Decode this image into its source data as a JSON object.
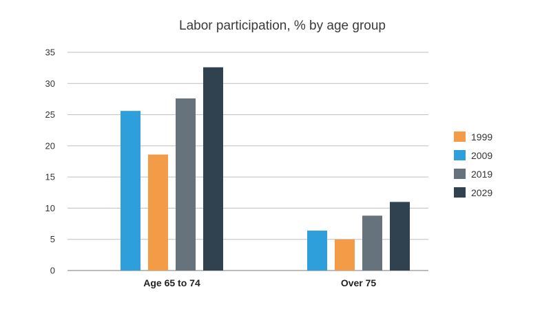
{
  "chart_data": {
    "type": "bar",
    "title": "Labor participation, % by age group",
    "categories": [
      "Age 65 to 74",
      "Over 75"
    ],
    "series": [
      {
        "name": "1999",
        "values": [
          18.6,
          5.0
        ],
        "color": "#f39b47"
      },
      {
        "name": "2009",
        "values": [
          25.6,
          6.4
        ],
        "color": "#2f9fdc"
      },
      {
        "name": "2019",
        "values": [
          27.6,
          8.8
        ],
        "color": "#66727c"
      },
      {
        "name": "2029",
        "values": [
          32.6,
          11.0
        ],
        "color": "#30414f"
      }
    ],
    "bar_series_order_left_to_right": [
      "2009",
      "1999",
      "2019",
      "2029"
    ],
    "ylim": [
      0,
      35
    ],
    "yticks": [
      "0",
      "5",
      "10",
      "15",
      "20",
      "25",
      "30",
      "35"
    ],
    "xlabel": "",
    "ylabel": "",
    "grid": true,
    "legend_position": "right"
  }
}
